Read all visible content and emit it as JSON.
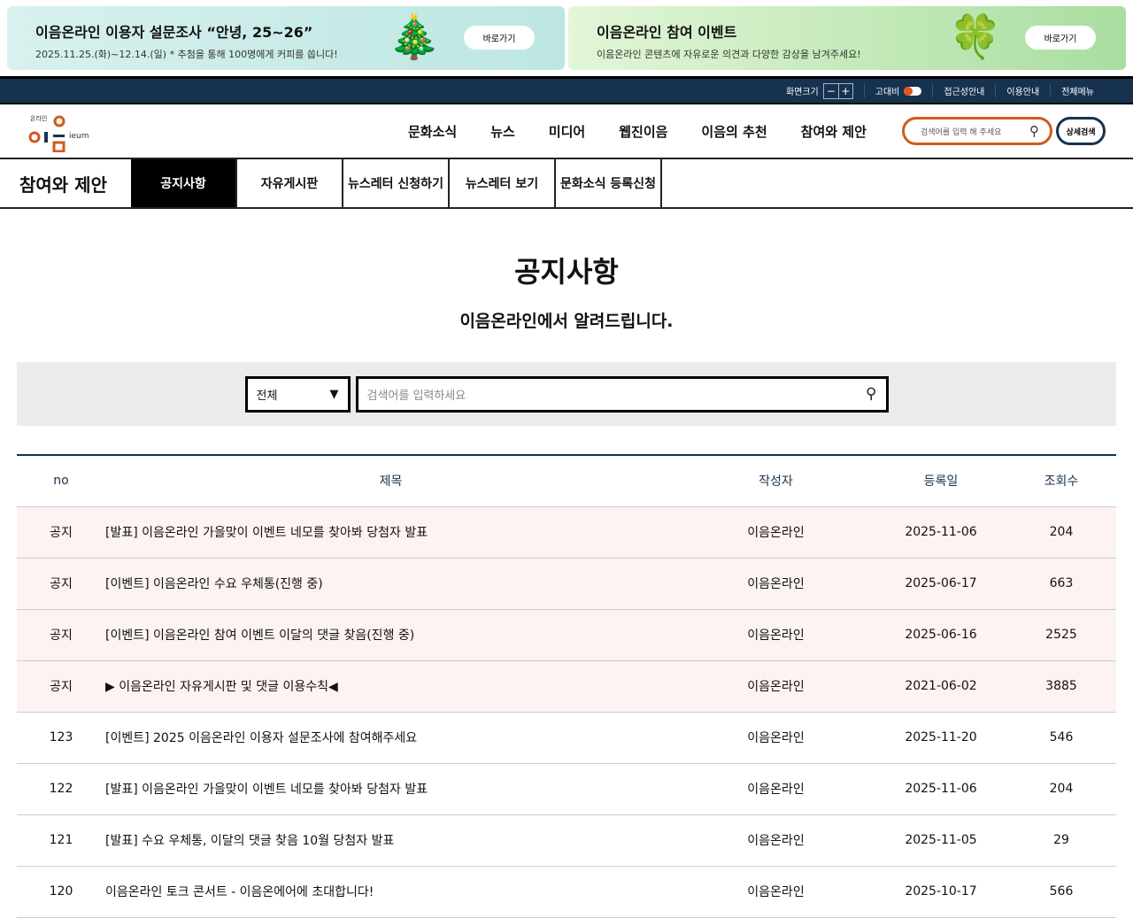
{
  "banners": [
    {
      "title": "이음온라인 이용자 설문조사 “안녕, 25~26”",
      "desc": "2025.11.25.(화)~12.14.(일)  * 추첨을 통해 100명에게 커피를 쏩니다!",
      "button": "바로가기",
      "icon": "tree-icon"
    },
    {
      "title": "이음온라인 참여 이벤트",
      "desc": "이음온라인 콘텐츠에 자유로운 의견과 다양한 감상을 남겨주세요!",
      "button": "바로가기",
      "icon": "clover-icon"
    }
  ],
  "utility": {
    "zoom_label": "화면크기",
    "minus": "−",
    "plus": "+",
    "contrast": "고대비",
    "accessibility": "접근성안내",
    "guide": "이용안내",
    "all_menu": "전체메뉴"
  },
  "logo": {
    "small": "온라인",
    "text": "ieum"
  },
  "gnb": [
    "문화소식",
    "뉴스",
    "미디어",
    "웹진이음",
    "이음의 추천",
    "참여와 제안"
  ],
  "header_search": {
    "placeholder": "검색어를 입력 해 주세요",
    "advanced": "상세검색"
  },
  "subnav": {
    "title": "참여와 제안",
    "tabs": [
      "공지사항",
      "자유게시판",
      "뉴스레터 신청하기",
      "뉴스레터 보기",
      "문화소식 등록신청"
    ],
    "active": 0
  },
  "page": {
    "title": "공지사항",
    "subtitle": "이음온라인에서 알려드립니다."
  },
  "search": {
    "select": "전체",
    "placeholder": "검색어를 입력하세요"
  },
  "table": {
    "headers": [
      "no",
      "제목",
      "작성자",
      "등록일",
      "조회수"
    ],
    "rows": [
      [
        "공지",
        "[발표] 이음온라인 가을맞이 이벤트 네모를 찾아봐 당첨자 발표",
        "이음온라인",
        "2025-11-06",
        "204"
      ],
      [
        "공지",
        "[이벤트] 이음온라인 수요 우체통(진행 중)",
        "이음온라인",
        "2025-06-17",
        "663"
      ],
      [
        "공지",
        "[이벤트] 이음온라인 참여 이벤트 이달의 댓글 찾음(진행 중)",
        "이음온라인",
        "2025-06-16",
        "2525"
      ],
      [
        "공지",
        "▶ 이음온라인 자유게시판 및 댓글 이용수칙◀",
        "이음온라인",
        "2021-06-02",
        "3885"
      ],
      [
        "123",
        "[이벤트] 2025 이음온라인 이용자 설문조사에 참여해주세요",
        "이음온라인",
        "2025-11-20",
        "546"
      ],
      [
        "122",
        "[발표] 이음온라인 가을맞이 이벤트 네모를 찾아봐 당첨자 발표",
        "이음온라인",
        "2025-11-06",
        "204"
      ],
      [
        "121",
        "[발표] 수요 우체통, 이달의 댓글 찾음 10월 당첨자 발표",
        "이음온라인",
        "2025-11-05",
        "29"
      ],
      [
        "120",
        "이음온라인 토크 콘서트 - 이음온에어에 초대합니다!",
        "이음온라인",
        "2025-10-17",
        "566"
      ]
    ]
  },
  "colors": {
    "navy": "#17324e",
    "accent": "#d05a1e",
    "notice_bg": "#fdf3f2"
  }
}
